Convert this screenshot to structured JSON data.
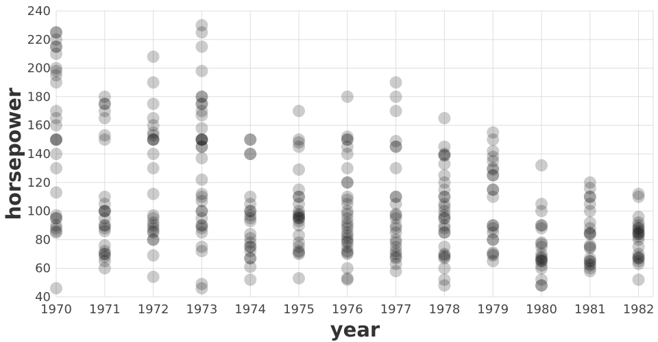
{
  "chart_data": {
    "type": "scatter",
    "title": "",
    "xlabel": "year",
    "ylabel": "horsepower",
    "x_ticks": [
      "1970",
      "1971",
      "1972",
      "1973",
      "1974",
      "1975",
      "1976",
      "1977",
      "1978",
      "1979",
      "1980",
      "1981",
      "1982"
    ],
    "y_ticks": [
      "40",
      "60",
      "80",
      "100",
      "120",
      "140",
      "160",
      "180",
      "200",
      "220",
      "240"
    ],
    "ylim": [
      40,
      240
    ],
    "grid": true,
    "legend": "none",
    "point_color": "#000000",
    "point_opacity": 0.2,
    "series": [
      {
        "x": "1970",
        "y": [
          225,
          225,
          220,
          215,
          215,
          210,
          200,
          198,
          195,
          190,
          170,
          165,
          160,
          150,
          150,
          150,
          140,
          130,
          113,
          97,
          95,
          95,
          90,
          88,
          86,
          85,
          46
        ]
      },
      {
        "x": "1971",
        "y": [
          180,
          175,
          175,
          170,
          165,
          153,
          150,
          110,
          105,
          100,
          100,
          100,
          95,
          90,
          90,
          88,
          86,
          76,
          72,
          70,
          70,
          68,
          65,
          60
        ]
      },
      {
        "x": "1972",
        "y": [
          208,
          190,
          175,
          165,
          160,
          155,
          153,
          150,
          150,
          150,
          140,
          130,
          112,
          97,
          95,
          92,
          90,
          88,
          86,
          85,
          80,
          80,
          69,
          54
        ]
      },
      {
        "x": "1973",
        "y": [
          230,
          225,
          215,
          198,
          180,
          180,
          175,
          175,
          170,
          167,
          158,
          150,
          150,
          150,
          150,
          145,
          145,
          137,
          122,
          112,
          110,
          107,
          100,
          100,
          95,
          90,
          90,
          88,
          85,
          75,
          72,
          49,
          46
        ]
      },
      {
        "x": "1974",
        "y": [
          150,
          150,
          140,
          140,
          110,
          105,
          100,
          100,
          97,
          95,
          93,
          84,
          81,
          78,
          75,
          75,
          72,
          67,
          67,
          61,
          52
        ]
      },
      {
        "x": "1975",
        "y": [
          170,
          150,
          148,
          145,
          129,
          115,
          110,
          110,
          105,
          100,
          98,
          97,
          96,
          95,
          95,
          93,
          90,
          83,
          78,
          75,
          72,
          71,
          70,
          53
        ]
      },
      {
        "x": "1976",
        "y": [
          180,
          152,
          150,
          150,
          145,
          140,
          130,
          120,
          120,
          110,
          108,
          105,
          100,
          98,
          95,
          92,
          90,
          88,
          85,
          83,
          81,
          79,
          78,
          75,
          72,
          71,
          70,
          60,
          53,
          52
        ]
      },
      {
        "x": "1977",
        "y": [
          190,
          180,
          170,
          149,
          145,
          145,
          130,
          110,
          110,
          105,
          98,
          97,
          95,
          90,
          88,
          85,
          80,
          78,
          75,
          72,
          70,
          68,
          67,
          63,
          58
        ]
      },
      {
        "x": "1978",
        "y": [
          165,
          145,
          140,
          139,
          139,
          133,
          125,
          120,
          115,
          110,
          110,
          105,
          103,
          100,
          97,
          95,
          95,
          90,
          88,
          85,
          85,
          75,
          70,
          69,
          68,
          67,
          60,
          52,
          48
        ]
      },
      {
        "x": "1979",
        "y": [
          155,
          150,
          142,
          138,
          135,
          130,
          129,
          125,
          125,
          115,
          115,
          110,
          90,
          90,
          88,
          85,
          80,
          80,
          71,
          70,
          69,
          65
        ]
      },
      {
        "x": "1980",
        "y": [
          132,
          105,
          100,
          90,
          90,
          88,
          78,
          77,
          75,
          70,
          68,
          67,
          66,
          65,
          65,
          62,
          60,
          52,
          48,
          48
        ]
      },
      {
        "x": "1981",
        "y": [
          120,
          116,
          110,
          110,
          105,
          100,
          92,
          88,
          85,
          84,
          84,
          76,
          75,
          74,
          67,
          65,
          65,
          63,
          62,
          60,
          58
        ]
      },
      {
        "x": "1982",
        "y": [
          112,
          110,
          96,
          92,
          90,
          88,
          88,
          86,
          85,
          84,
          84,
          82,
          80,
          75,
          70,
          68,
          67,
          67,
          65,
          63,
          52
        ]
      }
    ]
  }
}
